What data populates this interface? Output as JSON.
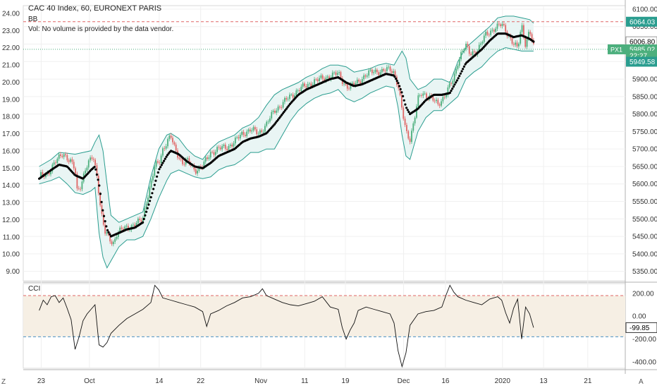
{
  "chart_data": {
    "type": "line",
    "title": "CAC 40 Index, 60, EURONEXT PARIS",
    "indicator_labels": {
      "bb": "BB",
      "volume_note": "Vol: No volume is provided by the data vendor.",
      "cci": "CCI"
    },
    "x_ticks": [
      "23",
      "Oct",
      "14",
      "22",
      "Nov",
      "11",
      "19",
      "Dec",
      "16",
      "2020",
      "13",
      "21"
    ],
    "x_tick_positions": [
      0.5,
      12.6,
      30.1,
      40.5,
      55.6,
      66.6,
      76.8,
      91.4,
      101.9,
      116.2,
      126.5,
      137.6
    ],
    "x_range": [
      -4,
      147
    ],
    "left_axis": {
      "ticks": [
        "24.00",
        "23.00",
        "22.00",
        "21.00",
        "20.00",
        "19.00",
        "18.00",
        "17.00",
        "16.00",
        "15.00",
        "14.00",
        "13.00",
        "12.00",
        "11.00",
        "10.00",
        "9.00"
      ],
      "range": [
        8.45,
        24.45
      ]
    },
    "right_axis": {
      "ticks": [
        "6100.00",
        "6050.00",
        "6000.00",
        "5950.00",
        "5900.00",
        "5850.00",
        "5800.00",
        "5750.00",
        "5700.00",
        "5650.00",
        "5600.00",
        "5550.00",
        "5500.00",
        "5450.00",
        "5400.00",
        "5350.00"
      ],
      "range": [
        5323,
        6110
      ]
    },
    "price_series": {
      "name": "CAC 40 Index",
      "up_color": "#4caf7d",
      "down_color": "#e06666",
      "points": [
        [
          0,
          5620
        ],
        [
          2,
          5630
        ],
        [
          4,
          5660
        ],
        [
          5,
          5675
        ],
        [
          6,
          5690
        ],
        [
          8,
          5660
        ],
        [
          9,
          5640
        ],
        [
          9.5,
          5580
        ],
        [
          10.5,
          5600
        ],
        [
          11.5,
          5640
        ],
        [
          12.5,
          5660
        ],
        [
          13.5,
          5680
        ],
        [
          14.5,
          5625
        ],
        [
          15.5,
          5520
        ],
        [
          16.5,
          5460
        ],
        [
          17.5,
          5445
        ],
        [
          18.5,
          5430
        ],
        [
          19.5,
          5460
        ],
        [
          21,
          5470
        ],
        [
          23,
          5480
        ],
        [
          25,
          5490
        ],
        [
          26,
          5500
        ],
        [
          27,
          5560
        ],
        [
          28,
          5600
        ],
        [
          29,
          5650
        ],
        [
          30,
          5660
        ],
        [
          31,
          5700
        ],
        [
          32,
          5720
        ],
        [
          33,
          5735
        ],
        [
          34,
          5700
        ],
        [
          35,
          5680
        ],
        [
          36,
          5660
        ],
        [
          37,
          5665
        ],
        [
          38,
          5655
        ],
        [
          39,
          5640
        ],
        [
          41,
          5650
        ],
        [
          43,
          5690
        ],
        [
          45,
          5700
        ],
        [
          47,
          5705
        ],
        [
          49,
          5720
        ],
        [
          51,
          5745
        ],
        [
          53,
          5755
        ],
        [
          55,
          5745
        ],
        [
          57,
          5770
        ],
        [
          59,
          5810
        ],
        [
          61,
          5830
        ],
        [
          63,
          5850
        ],
        [
          65,
          5870
        ],
        [
          67,
          5880
        ],
        [
          69,
          5895
        ],
        [
          71,
          5900
        ],
        [
          73,
          5910
        ],
        [
          75,
          5915
        ],
        [
          77,
          5880
        ],
        [
          78,
          5875
        ],
        [
          80,
          5895
        ],
        [
          82,
          5910
        ],
        [
          84,
          5925
        ],
        [
          86,
          5920
        ],
        [
          88,
          5930
        ],
        [
          89,
          5920
        ],
        [
          90,
          5880
        ],
        [
          91,
          5810
        ],
        [
          92,
          5750
        ],
        [
          93,
          5730
        ],
        [
          94,
          5780
        ],
        [
          95,
          5840
        ],
        [
          96,
          5860
        ],
        [
          98,
          5850
        ],
        [
          100,
          5825
        ],
        [
          102,
          5860
        ],
        [
          103,
          5880
        ],
        [
          104,
          5900
        ],
        [
          105,
          5950
        ],
        [
          106,
          5980
        ],
        [
          107,
          5995
        ],
        [
          108,
          5970
        ],
        [
          110,
          5985
        ],
        [
          112,
          6025
        ],
        [
          114,
          6045
        ],
        [
          116,
          6055
        ],
        [
          117,
          6040
        ],
        [
          118,
          6020
        ],
        [
          119,
          6000
        ],
        [
          120,
          5985
        ],
        [
          121,
          6055
        ],
        [
          122,
          6000
        ],
        [
          123,
          6040
        ],
        [
          124,
          5990
        ]
      ]
    },
    "bb_basis": [
      [
        0,
        5615
      ],
      [
        3,
        5640
      ],
      [
        5,
        5655
      ],
      [
        7,
        5650
      ],
      [
        9,
        5625
      ],
      [
        11,
        5615
      ],
      [
        13,
        5640
      ],
      [
        14,
        5650
      ],
      [
        15,
        5600
      ],
      [
        16,
        5520
      ],
      [
        17,
        5470
      ],
      [
        18,
        5450
      ],
      [
        20,
        5460
      ],
      [
        22,
        5470
      ],
      [
        24,
        5475
      ],
      [
        26,
        5490
      ],
      [
        28,
        5560
      ],
      [
        30,
        5640
      ],
      [
        32,
        5680
      ],
      [
        33,
        5695
      ],
      [
        35,
        5685
      ],
      [
        37,
        5665
      ],
      [
        39,
        5650
      ],
      [
        41,
        5645
      ],
      [
        43,
        5660
      ],
      [
        45,
        5680
      ],
      [
        47,
        5690
      ],
      [
        49,
        5700
      ],
      [
        51,
        5720
      ],
      [
        53,
        5730
      ],
      [
        55,
        5735
      ],
      [
        57,
        5745
      ],
      [
        59,
        5770
      ],
      [
        61,
        5800
      ],
      [
        63,
        5830
      ],
      [
        65,
        5855
      ],
      [
        67,
        5870
      ],
      [
        69,
        5880
      ],
      [
        71,
        5890
      ],
      [
        73,
        5900
      ],
      [
        75,
        5905
      ],
      [
        77,
        5890
      ],
      [
        79,
        5880
      ],
      [
        81,
        5885
      ],
      [
        83,
        5895
      ],
      [
        85,
        5905
      ],
      [
        87,
        5915
      ],
      [
        89,
        5910
      ],
      [
        90,
        5890
      ],
      [
        91,
        5860
      ],
      [
        92,
        5820
      ],
      [
        93,
        5800
      ],
      [
        95,
        5815
      ],
      [
        97,
        5840
      ],
      [
        99,
        5855
      ],
      [
        101,
        5855
      ],
      [
        103,
        5860
      ],
      [
        105,
        5900
      ],
      [
        107,
        5945
      ],
      [
        109,
        5965
      ],
      [
        111,
        5985
      ],
      [
        113,
        6010
      ],
      [
        115,
        6030
      ],
      [
        117,
        6030
      ],
      [
        119,
        6020
      ],
      [
        121,
        6025
      ],
      [
        123,
        6015
      ],
      [
        124,
        6007
      ]
    ],
    "bb_upper": [
      [
        0,
        5650
      ],
      [
        3,
        5670
      ],
      [
        5,
        5690
      ],
      [
        7,
        5688
      ],
      [
        9,
        5685
      ],
      [
        11,
        5690
      ],
      [
        13,
        5695
      ],
      [
        14,
        5720
      ],
      [
        15,
        5740
      ],
      [
        16,
        5695
      ],
      [
        17,
        5600
      ],
      [
        18,
        5510
      ],
      [
        20,
        5490
      ],
      [
        22,
        5500
      ],
      [
        24,
        5510
      ],
      [
        26,
        5520
      ],
      [
        28,
        5620
      ],
      [
        30,
        5700
      ],
      [
        32,
        5740
      ],
      [
        33,
        5745
      ],
      [
        35,
        5730
      ],
      [
        37,
        5700
      ],
      [
        39,
        5680
      ],
      [
        41,
        5670
      ],
      [
        43,
        5700
      ],
      [
        45,
        5720
      ],
      [
        47,
        5730
      ],
      [
        49,
        5740
      ],
      [
        51,
        5760
      ],
      [
        53,
        5770
      ],
      [
        55,
        5790
      ],
      [
        57,
        5825
      ],
      [
        59,
        5855
      ],
      [
        61,
        5870
      ],
      [
        63,
        5880
      ],
      [
        65,
        5890
      ],
      [
        67,
        5905
      ],
      [
        69,
        5915
      ],
      [
        71,
        5930
      ],
      [
        73,
        5940
      ],
      [
        75,
        5940
      ],
      [
        77,
        5935
      ],
      [
        79,
        5920
      ],
      [
        81,
        5925
      ],
      [
        83,
        5930
      ],
      [
        85,
        5940
      ],
      [
        87,
        5945
      ],
      [
        89,
        5940
      ],
      [
        90,
        5960
      ],
      [
        91,
        5980
      ],
      [
        92,
        5960
      ],
      [
        93,
        5900
      ],
      [
        95,
        5870
      ],
      [
        97,
        5880
      ],
      [
        99,
        5900
      ],
      [
        101,
        5900
      ],
      [
        103,
        5890
      ],
      [
        105,
        5950
      ],
      [
        107,
        5990
      ],
      [
        109,
        6010
      ],
      [
        111,
        6030
      ],
      [
        113,
        6050
      ],
      [
        115,
        6075
      ],
      [
        117,
        6080
      ],
      [
        119,
        6080
      ],
      [
        121,
        6075
      ],
      [
        123,
        6070
      ],
      [
        124,
        6060
      ]
    ],
    "bb_lower": [
      [
        0,
        5600
      ],
      [
        3,
        5610
      ],
      [
        5,
        5620
      ],
      [
        7,
        5600
      ],
      [
        9,
        5575
      ],
      [
        11,
        5570
      ],
      [
        13,
        5580
      ],
      [
        14,
        5590
      ],
      [
        15,
        5460
      ],
      [
        16,
        5390
      ],
      [
        17,
        5360
      ],
      [
        18,
        5380
      ],
      [
        20,
        5420
      ],
      [
        22,
        5440
      ],
      [
        24,
        5440
      ],
      [
        26,
        5450
      ],
      [
        28,
        5500
      ],
      [
        30,
        5560
      ],
      [
        32,
        5610
      ],
      [
        33,
        5630
      ],
      [
        35,
        5640
      ],
      [
        37,
        5630
      ],
      [
        39,
        5620
      ],
      [
        41,
        5615
      ],
      [
        43,
        5620
      ],
      [
        45,
        5640
      ],
      [
        47,
        5650
      ],
      [
        49,
        5655
      ],
      [
        51,
        5670
      ],
      [
        53,
        5690
      ],
      [
        55,
        5690
      ],
      [
        57,
        5700
      ],
      [
        59,
        5700
      ],
      [
        61,
        5740
      ],
      [
        63,
        5780
      ],
      [
        65,
        5810
      ],
      [
        67,
        5830
      ],
      [
        69,
        5845
      ],
      [
        71,
        5855
      ],
      [
        73,
        5860
      ],
      [
        75,
        5870
      ],
      [
        77,
        5845
      ],
      [
        79,
        5835
      ],
      [
        81,
        5845
      ],
      [
        83,
        5860
      ],
      [
        85,
        5870
      ],
      [
        87,
        5880
      ],
      [
        89,
        5875
      ],
      [
        90,
        5820
      ],
      [
        91,
        5740
      ],
      [
        92,
        5680
      ],
      [
        93,
        5670
      ],
      [
        95,
        5750
      ],
      [
        97,
        5790
      ],
      [
        99,
        5810
      ],
      [
        101,
        5810
      ],
      [
        103,
        5830
      ],
      [
        105,
        5850
      ],
      [
        107,
        5900
      ],
      [
        109,
        5920
      ],
      [
        111,
        5935
      ],
      [
        113,
        5960
      ],
      [
        115,
        5980
      ],
      [
        117,
        5990
      ],
      [
        119,
        5985
      ],
      [
        121,
        5980
      ],
      [
        123,
        5980
      ],
      [
        124,
        5980
      ]
    ],
    "levels": {
      "red_dashed": 6064.03,
      "green_dotted": 5985.02
    },
    "price_labels": [
      {
        "text": "6064.03",
        "value": 6064.03,
        "color": "#2a9d8f"
      },
      {
        "text": "6006.80",
        "value": 6006.8,
        "color": "#ffffff"
      },
      {
        "text": "5985.02",
        "value": 5985.02,
        "color": "#4caf7d",
        "tag": "PX1"
      },
      {
        "text": "22:27",
        "value": 5967.0,
        "color": "#4caf7d"
      },
      {
        "text": "5949.58",
        "value": 5949.58,
        "color": "#2a9d8f"
      }
    ],
    "cci": {
      "name": "CCI",
      "ticks": [
        "200.00",
        "0.00",
        "-200.00",
        "-400.00"
      ],
      "tick_values": [
        200,
        0,
        -200,
        -400
      ],
      "range": [
        -455,
        285
      ],
      "upper_band": 180,
      "lower_band": -180,
      "current_label": "-99.85",
      "current_value": -99.85,
      "points": [
        [
          0,
          50
        ],
        [
          1,
          140
        ],
        [
          2,
          100
        ],
        [
          3,
          170
        ],
        [
          4,
          180
        ],
        [
          5,
          120
        ],
        [
          6,
          160
        ],
        [
          7,
          70
        ],
        [
          8,
          -30
        ],
        [
          9,
          -290
        ],
        [
          10,
          -180
        ],
        [
          11,
          -40
        ],
        [
          12,
          20
        ],
        [
          13,
          60
        ],
        [
          14,
          100
        ],
        [
          15,
          -250
        ],
        [
          16,
          -270
        ],
        [
          17,
          -230
        ],
        [
          18,
          -150
        ],
        [
          20,
          -80
        ],
        [
          22,
          -20
        ],
        [
          24,
          20
        ],
        [
          26,
          60
        ],
        [
          28,
          120
        ],
        [
          29,
          270
        ],
        [
          30,
          230
        ],
        [
          31,
          160
        ],
        [
          33,
          140
        ],
        [
          35,
          120
        ],
        [
          37,
          100
        ],
        [
          39,
          80
        ],
        [
          41,
          40
        ],
        [
          42,
          -90
        ],
        [
          43,
          20
        ],
        [
          45,
          50
        ],
        [
          47,
          90
        ],
        [
          49,
          120
        ],
        [
          51,
          160
        ],
        [
          53,
          170
        ],
        [
          55,
          200
        ],
        [
          56,
          240
        ],
        [
          57,
          180
        ],
        [
          59,
          150
        ],
        [
          61,
          120
        ],
        [
          63,
          100
        ],
        [
          65,
          90
        ],
        [
          67,
          110
        ],
        [
          69,
          130
        ],
        [
          71,
          170
        ],
        [
          73,
          80
        ],
        [
          75,
          60
        ],
        [
          76,
          -100
        ],
        [
          77,
          -200
        ],
        [
          78,
          -120
        ],
        [
          79,
          -60
        ],
        [
          80,
          50
        ],
        [
          82,
          80
        ],
        [
          84,
          60
        ],
        [
          86,
          40
        ],
        [
          88,
          20
        ],
        [
          89,
          -60
        ],
        [
          90,
          -300
        ],
        [
          91,
          -440
        ],
        [
          92,
          -320
        ],
        [
          93,
          -80
        ],
        [
          95,
          20
        ],
        [
          97,
          40
        ],
        [
          99,
          50
        ],
        [
          101,
          80
        ],
        [
          102,
          180
        ],
        [
          103,
          270
        ],
        [
          104,
          210
        ],
        [
          105,
          170
        ],
        [
          107,
          140
        ],
        [
          109,
          120
        ],
        [
          111,
          100
        ],
        [
          113,
          150
        ],
        [
          115,
          170
        ],
        [
          116,
          140
        ],
        [
          117,
          30
        ],
        [
          118,
          -60
        ],
        [
          119,
          70
        ],
        [
          120,
          150
        ],
        [
          121,
          -200
        ],
        [
          122,
          80
        ],
        [
          123,
          20
        ],
        [
          124,
          -100
        ]
      ]
    }
  }
}
